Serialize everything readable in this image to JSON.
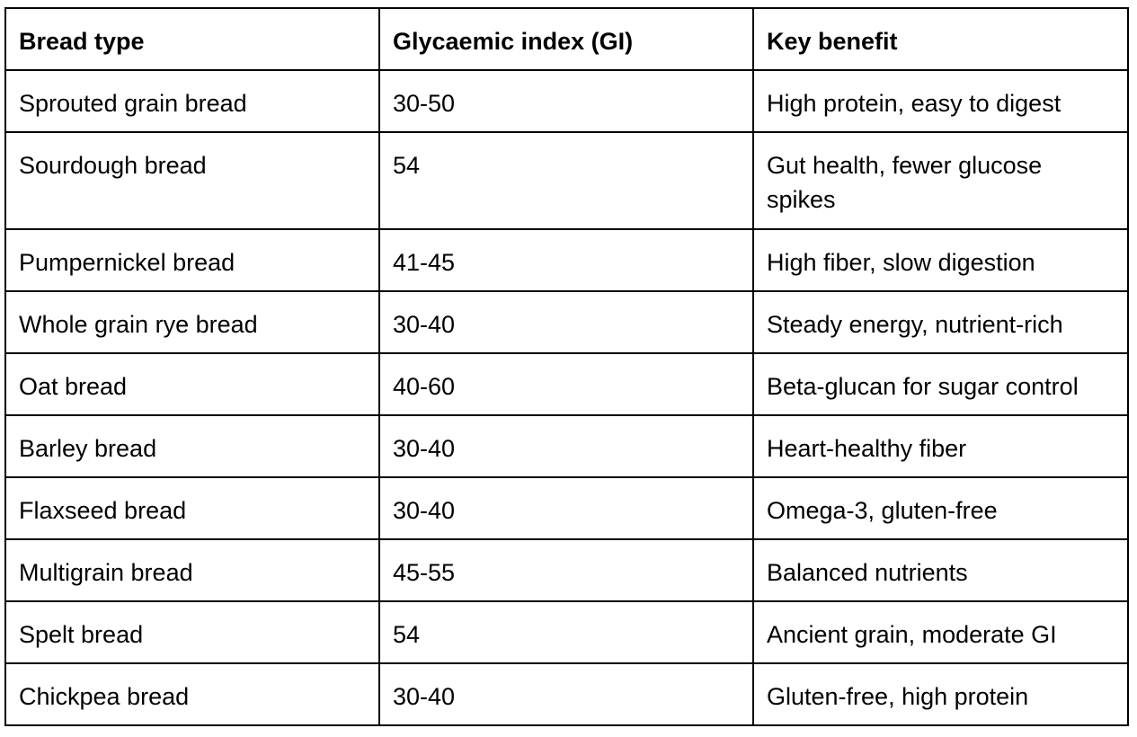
{
  "table": {
    "headers": [
      "Bread type",
      "Glycaemic index (GI)",
      "Key benefit"
    ],
    "rows": [
      [
        "Sprouted grain bread",
        "30-50",
        "High protein, easy to digest"
      ],
      [
        "Sourdough bread",
        "54",
        "Gut health, fewer glucose spikes"
      ],
      [
        "Pumpernickel bread",
        "41-45",
        "High fiber, slow digestion"
      ],
      [
        "Whole grain rye bread",
        "30-40",
        "Steady energy, nutrient-rich"
      ],
      [
        "Oat bread",
        "40-60",
        "Beta-glucan for sugar control"
      ],
      [
        "Barley bread",
        "30-40",
        "Heart-healthy fiber"
      ],
      [
        "Flaxseed bread",
        "30-40",
        "Omega-3, gluten-free"
      ],
      [
        "Multigrain bread",
        "45-55",
        "Balanced nutrients"
      ],
      [
        "Spelt bread",
        "54",
        "Ancient grain, moderate GI"
      ],
      [
        "Chickpea bread",
        "30-40",
        "Gluten-free, high protein"
      ]
    ]
  },
  "colors": {
    "border": "#000000",
    "text": "#000000",
    "background": "#ffffff"
  }
}
